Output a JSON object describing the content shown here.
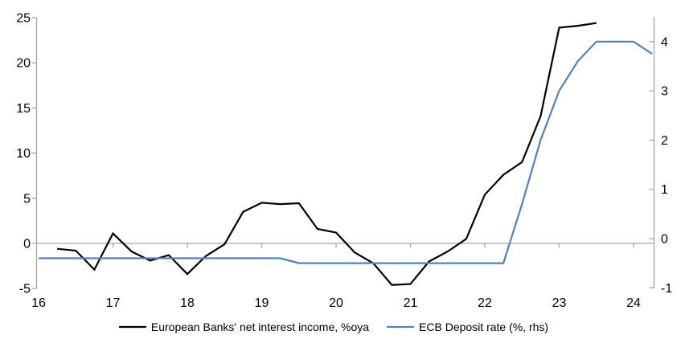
{
  "chart_data": {
    "type": "line",
    "title": "",
    "legend_position": "bottom",
    "grid": "off",
    "series": [
      {
        "name": "European Banks' net interest income, %oya",
        "color": "#000000",
        "axis": "left",
        "points": [
          [
            16.25,
            -0.6
          ],
          [
            16.5,
            -0.8
          ],
          [
            16.75,
            -2.9
          ],
          [
            17,
            1.1
          ],
          [
            17.25,
            -0.9
          ],
          [
            17.5,
            -1.9
          ],
          [
            17.75,
            -1.3
          ],
          [
            18,
            -3.4
          ],
          [
            18.25,
            -1.4
          ],
          [
            18.5,
            -0.1
          ],
          [
            18.75,
            3.5
          ],
          [
            19,
            4.5
          ],
          [
            19.25,
            4.35
          ],
          [
            19.5,
            4.45
          ],
          [
            19.75,
            1.6
          ],
          [
            20,
            1.2
          ],
          [
            20.25,
            -1.0
          ],
          [
            20.5,
            -2.2
          ],
          [
            20.75,
            -4.6
          ],
          [
            21,
            -4.5
          ],
          [
            21.25,
            -2.0
          ],
          [
            21.5,
            -0.9
          ],
          [
            21.75,
            0.5
          ],
          [
            22,
            5.4
          ],
          [
            22.25,
            7.6
          ],
          [
            22.5,
            9.0
          ],
          [
            22.75,
            14.1
          ],
          [
            23,
            23.9
          ],
          [
            23.25,
            24.1
          ],
          [
            23.5,
            24.4
          ]
        ]
      },
      {
        "name": "ECB Deposit rate (%, rhs)",
        "color": "#4f81bd",
        "axis": "right",
        "points": [
          [
            16,
            -0.4
          ],
          [
            19.25,
            -0.4
          ],
          [
            19.5,
            -0.5
          ],
          [
            22.25,
            -0.5
          ],
          [
            22.5,
            0.7
          ],
          [
            22.75,
            2.0
          ],
          [
            23,
            3.0
          ],
          [
            23.25,
            3.6
          ],
          [
            23.5,
            4.0
          ],
          [
            24,
            4.0
          ],
          [
            24.25,
            3.75
          ]
        ]
      }
    ],
    "left_axis": {
      "ticks": [
        -5,
        0,
        5,
        10,
        15,
        20,
        25
      ],
      "min": -5,
      "max": 25
    },
    "right_axis": {
      "ticks": [
        -1,
        0,
        1,
        2,
        3,
        4
      ],
      "min": -1,
      "max": 4.5
    },
    "x_axis": {
      "ticks": [
        16,
        17,
        18,
        19,
        20,
        21,
        22,
        23,
        24
      ],
      "min": 16,
      "max": 24.3
    },
    "colors": {
      "axis": "#a6a6a6",
      "zero_line": "#a6a6a6",
      "text": "#000000"
    }
  }
}
